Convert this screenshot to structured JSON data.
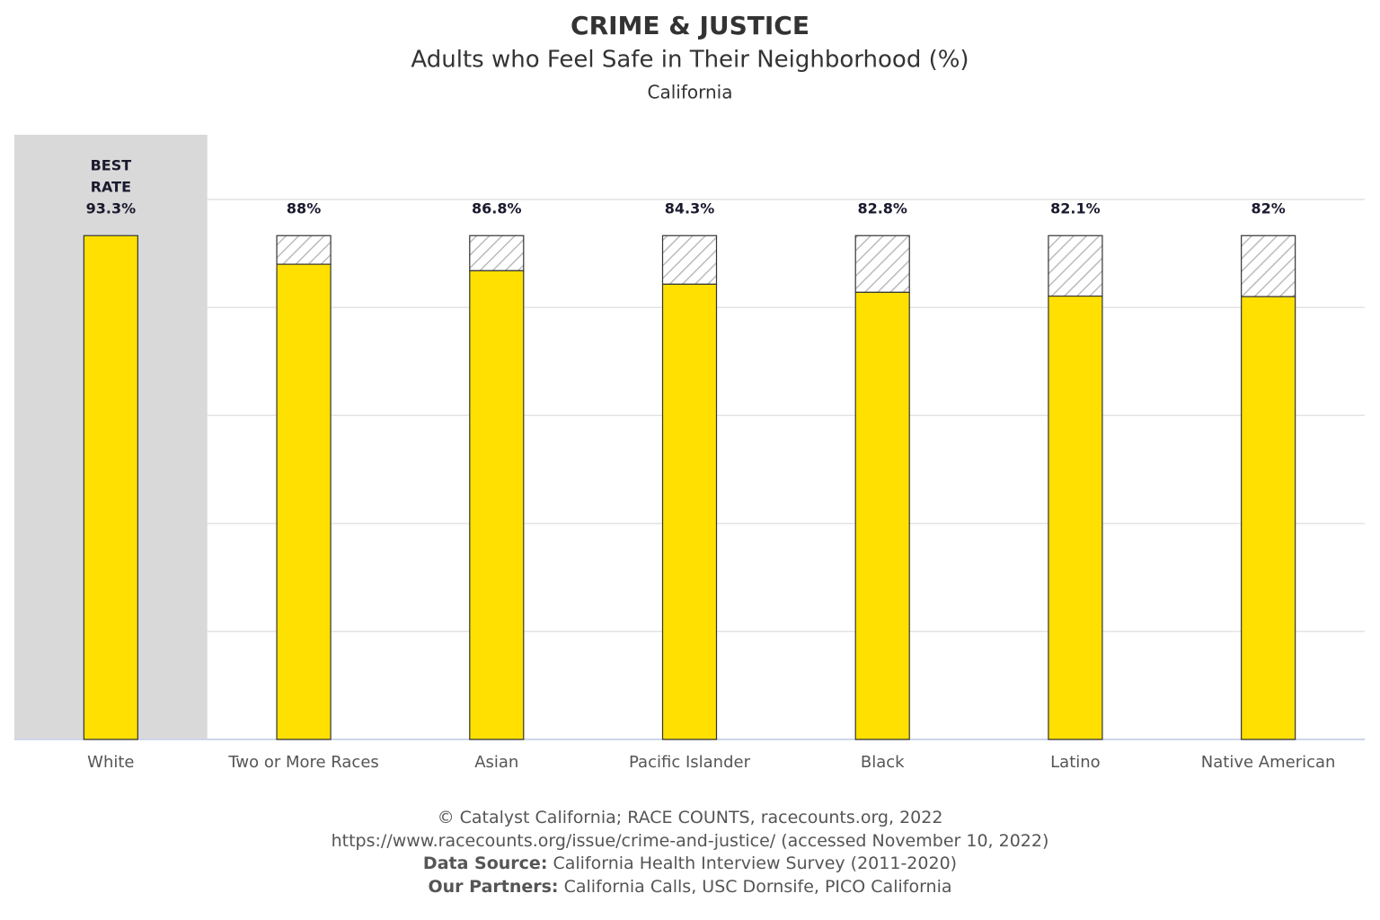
{
  "chart_data": {
    "type": "bar",
    "category_title": "CRIME & JUSTICE",
    "title": "Adults who Feel Safe in Their Neighborhood (%)",
    "subtitle": "California",
    "categories": [
      "White",
      "Two or More Races",
      "Asian",
      "Pacific Islander",
      "Black",
      "Latino",
      "Native American"
    ],
    "values": [
      93.3,
      88,
      86.8,
      84.3,
      82.8,
      82.1,
      82
    ],
    "value_labels": [
      "93.3%",
      "88%",
      "86.8%",
      "84.3%",
      "82.8%",
      "82.1%",
      "82%"
    ],
    "color": "#ffe000",
    "best_label": [
      "BEST",
      "RATE"
    ],
    "ylim": [
      0,
      100
    ],
    "yticks": [
      0,
      20,
      40,
      60,
      80,
      100
    ],
    "grid": true,
    "footer": {
      "copyright": "© Catalyst California; RACE COUNTS, racecounts.org, 2022",
      "url": "https://www.racecounts.org/issue/crime-and-justice/ (accessed November 10, 2022)",
      "source_label": "Data Source:",
      "source": "California Health Interview Survey (2011-2020)",
      "partners_label": "Our Partners:",
      "partners": "California Calls, USC Dornsife, PICO California"
    }
  }
}
